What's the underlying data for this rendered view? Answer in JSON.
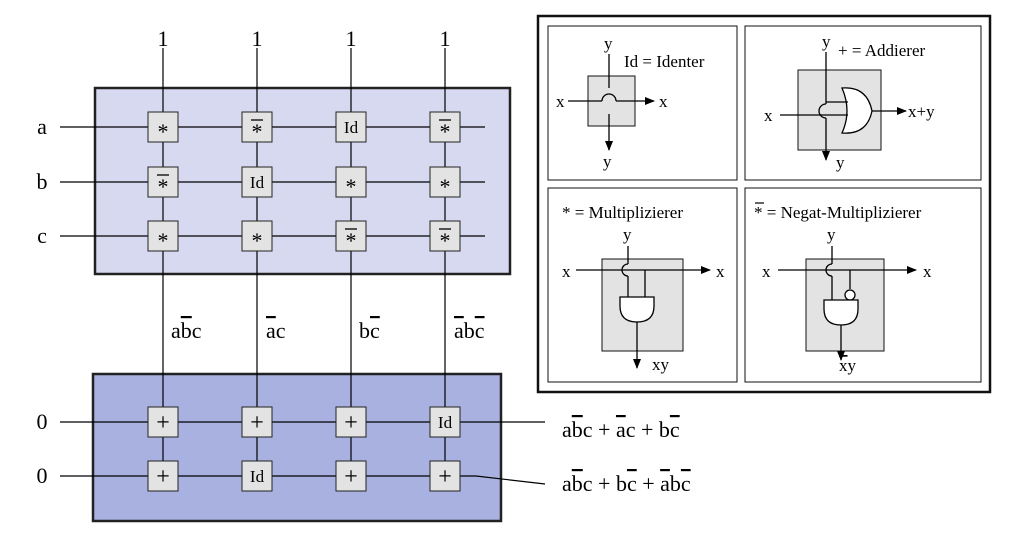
{
  "colors": {
    "upper_plane": "#d6d9ef",
    "lower_plane": "#a8b1e0",
    "cell_fill": "#e3e3e3",
    "legend_box_fill": "#e3e3e3",
    "line": "#000000"
  },
  "top_inputs": [
    "1",
    "1",
    "1",
    "1"
  ],
  "row_inputs_upper": [
    "a",
    "b",
    "c"
  ],
  "row_inputs_lower": [
    "0",
    "0"
  ],
  "upper_grid": [
    [
      "*",
      "*",
      "Id",
      "*"
    ],
    [
      "*",
      "Id",
      "*",
      "*"
    ],
    [
      "*",
      "*",
      "*",
      "*"
    ]
  ],
  "upper_grid_negated": [
    [
      false,
      true,
      false,
      true
    ],
    [
      true,
      false,
      false,
      false
    ],
    [
      false,
      false,
      true,
      true
    ]
  ],
  "lower_grid": [
    [
      "+",
      "+",
      "+",
      "Id"
    ],
    [
      "+",
      "Id",
      "+",
      "+"
    ]
  ],
  "product_terms": [
    [
      {
        "t": "a",
        "o": false
      },
      {
        "t": "b",
        "o": true
      },
      {
        "t": "c",
        "o": false
      }
    ],
    [
      {
        "t": "a",
        "o": true
      },
      {
        "t": "c",
        "o": false
      }
    ],
    [
      {
        "t": "b",
        "o": false
      },
      {
        "t": "c",
        "o": true
      }
    ],
    [
      {
        "t": "a",
        "o": true
      },
      {
        "t": "b",
        "o": false
      },
      {
        "t": "c",
        "o": true
      }
    ]
  ],
  "outputs": [
    [
      {
        "t": "a",
        "o": false
      },
      {
        "t": "b",
        "o": true
      },
      {
        "t": "c",
        "o": false
      },
      {
        "t": " + ",
        "o": false
      },
      {
        "t": "a",
        "o": true
      },
      {
        "t": "c",
        "o": false
      },
      {
        "t": " + ",
        "o": false
      },
      {
        "t": "b",
        "o": false
      },
      {
        "t": "c",
        "o": true
      }
    ],
    [
      {
        "t": "a",
        "o": false
      },
      {
        "t": "b",
        "o": true
      },
      {
        "t": "c",
        "o": false
      },
      {
        "t": " + ",
        "o": false
      },
      {
        "t": "b",
        "o": false
      },
      {
        "t": "c",
        "o": true
      },
      {
        "t": " + ",
        "o": false
      },
      {
        "t": "a",
        "o": true
      },
      {
        "t": "b",
        "o": false
      },
      {
        "t": "c",
        "o": true
      }
    ]
  ],
  "legend": {
    "identer": {
      "title": "Id = Identer",
      "in_top": "y",
      "in_left": "x",
      "out_right": "x",
      "out_bottom": "y"
    },
    "addierer": {
      "title": "+ = Addierer",
      "in_top": "y",
      "in_left": "x",
      "out_right": "x+y",
      "out_bottom": "y"
    },
    "multiplizierer": {
      "title": "* = Multiplizierer",
      "in_top": "y",
      "in_left": "x",
      "out_right": "x",
      "out_bottom": "xy"
    },
    "negat": {
      "title_symbol": "*",
      "title_rest": " = Negat-Multiplizierer",
      "in_top": "y",
      "in_left": "x",
      "out_right": "x",
      "out_bottom_neg": "x",
      "out_bottom_rest": "y"
    }
  }
}
